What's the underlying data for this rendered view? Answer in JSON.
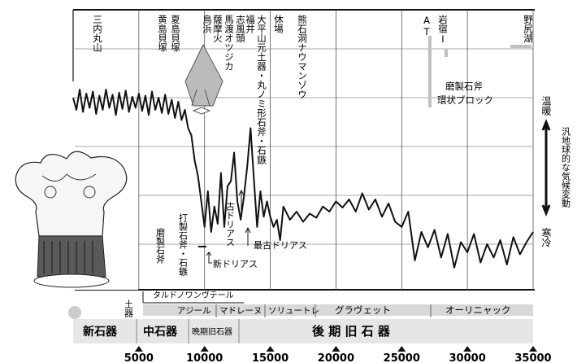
{
  "chart_data": {
    "type": "line",
    "xaxis": {
      "unit": "years BP",
      "range": [
        0,
        35000
      ],
      "tick_values": [
        5000,
        10000,
        15000,
        20000,
        25000,
        30000,
        35000
      ],
      "tick_labels": [
        "5000",
        "10000",
        "15000",
        "20000",
        "25000",
        "30000",
        "35000"
      ]
    },
    "series": [
      {
        "x": [
          0,
          250,
          500,
          750,
          1000,
          1250,
          1500,
          1750,
          2000,
          2250,
          2500,
          2750,
          3000,
          3250,
          3500,
          3750,
          4000,
          4250,
          4500,
          4750,
          5000,
          5250,
          5500,
          5750,
          6000,
          6250,
          6500,
          6750,
          7000,
          7250,
          7500,
          7750,
          8000,
          8250,
          8500,
          8750,
          9000,
          9250,
          9500,
          9750,
          10000,
          10250,
          10500,
          10750,
          11000,
          11250,
          11500,
          11750,
          12000,
          12250,
          12500,
          12750,
          13000,
          13250,
          13500,
          13750,
          14000,
          14250,
          14500,
          14750,
          15000,
          15250,
          15500,
          15750,
          16000,
          16500,
          17000,
          17500,
          18000,
          18500,
          19000,
          19500,
          20000,
          20500,
          21000,
          21500,
          22000,
          22500,
          23000,
          23500,
          24000,
          24500,
          25000,
          25500,
          26000,
          26500,
          27000,
          27500,
          28000,
          28500,
          29000,
          29500,
          30000,
          30500,
          31000,
          31500,
          32000,
          32500,
          33000,
          33500,
          34000,
          34500,
          35000
        ],
        "values": [
          0.72,
          0.6,
          0.8,
          0.58,
          0.76,
          0.62,
          0.78,
          0.56,
          0.74,
          0.6,
          0.8,
          0.62,
          0.75,
          0.55,
          0.77,
          0.61,
          0.79,
          0.58,
          0.73,
          0.62,
          0.76,
          0.59,
          0.74,
          0.55,
          0.78,
          0.6,
          0.72,
          0.57,
          0.75,
          0.56,
          0.7,
          0.52,
          0.68,
          0.5,
          0.6,
          0.42,
          0.35,
          0.1,
          -0.05,
          -0.3,
          -0.55,
          -0.2,
          -0.6,
          -0.35,
          -0.52,
          -0.02,
          -0.55,
          -0.15,
          -0.1,
          0.18,
          -0.3,
          -0.48,
          -0.25,
          0.05,
          0.42,
          -0.08,
          -0.55,
          -0.2,
          -0.45,
          -0.3,
          -0.45,
          -0.55,
          -0.48,
          -0.68,
          -0.35,
          -0.48,
          -0.4,
          -0.5,
          -0.42,
          -0.46,
          -0.35,
          -0.4,
          -0.3,
          -0.36,
          -0.28,
          -0.4,
          -0.22,
          -0.38,
          -0.28,
          -0.45,
          -0.32,
          -0.5,
          -0.55,
          -0.4,
          -0.88,
          -0.6,
          -0.75,
          -0.58,
          -0.85,
          -0.62,
          -0.95,
          -0.7,
          -0.8,
          -0.62,
          -0.9,
          -0.72,
          -0.85,
          -0.68,
          -0.92,
          -0.65,
          -0.82,
          -0.7,
          -0.6
        ]
      }
    ],
    "top_labels": [
      "三内丸山",
      "黄島貝塚",
      "夏島貝塚",
      "鳥浜",
      "薩摩火",
      "馬渡オツジカ",
      "志風頭",
      "福井",
      "大平山元土器・丸ノミ形石斧・石鏃",
      "休場",
      "熊石洞ナウマンゾウ",
      "AT",
      "岩宿Ⅰ",
      "野尻湖"
    ],
    "annotations": [
      "磨製石斧",
      "環状ブロック",
      "磨製石斧",
      "打製石斧・石鏃",
      "新ドリアス",
      "古ドリアス",
      "最古ドリアス"
    ],
    "right_labels": {
      "warm": "温暖",
      "cold": "寒冷",
      "axis": "汎地球的な気候変動"
    },
    "culture_labels": [
      "タルドノワンヴテール",
      "土器",
      "アジール",
      "マドレーヌ",
      "ソリュートレ",
      "グラヴェット",
      "オーリニャック"
    ],
    "period_labels": [
      "新石器",
      "中石器",
      "晩期旧石器",
      "後 期 旧 石 器"
    ],
    "colors": {
      "line": "#111111",
      "grid": "#555555",
      "band": "#c9c9c9"
    }
  }
}
